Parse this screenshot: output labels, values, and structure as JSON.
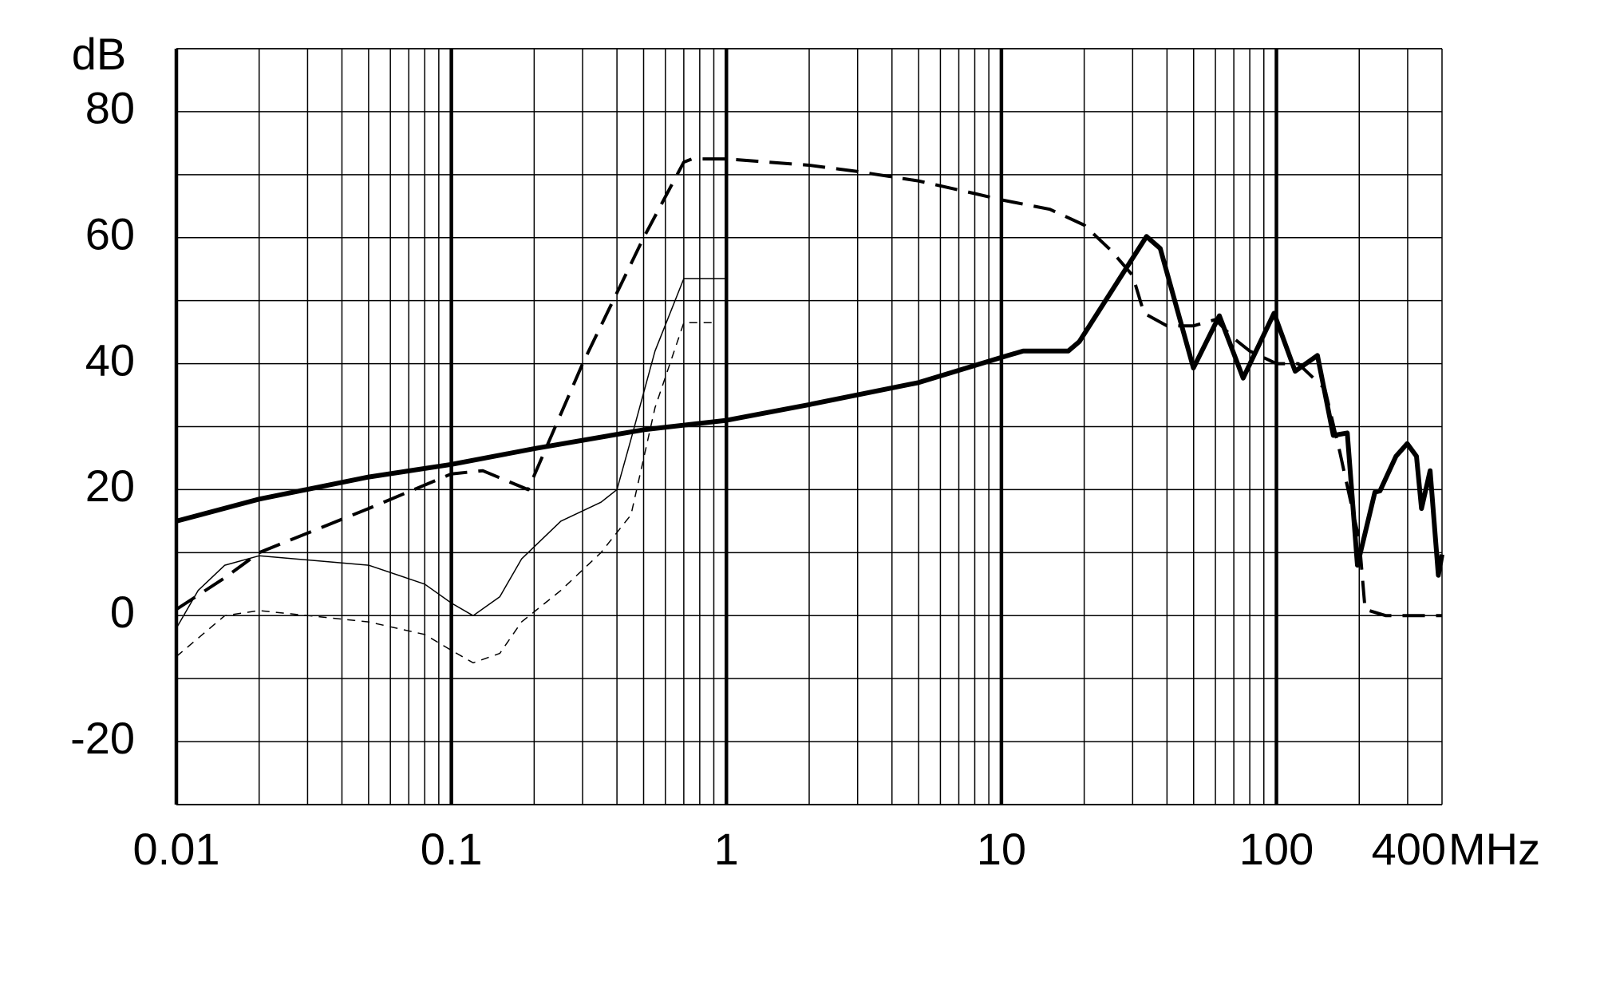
{
  "chart_data": {
    "type": "line",
    "y_label": "dB",
    "x_label": "MHz",
    "xscale": "log",
    "grid": true,
    "log_minor_grid": true,
    "xlim": [
      0.01,
      400
    ],
    "xticks": [
      0.01,
      0.1,
      1,
      10,
      100,
      400
    ],
    "ylim": [
      -30,
      90
    ],
    "yticks": [
      -20,
      0,
      20,
      40,
      60,
      80
    ],
    "y_minor_ticks": [
      -30,
      -10,
      10,
      30,
      50,
      70,
      90
    ],
    "series": [
      {
        "color": "#000000",
        "width": 6,
        "dash": "none",
        "x": [
          0.01,
          0.02,
          0.05,
          0.1,
          0.2,
          0.5,
          1,
          2,
          5,
          10,
          12,
          17.5,
          19.2,
          33.7,
          37.8,
          49.9,
          62,
          75.7,
          98,
          117,
          141,
          161,
          181,
          197,
          228,
          238,
          272,
          299,
          323,
          337,
          362,
          388,
          400
        ],
        "values": [
          15,
          18.5,
          22,
          24,
          26.5,
          29.5,
          31,
          33.5,
          37,
          41,
          42,
          42,
          43.5,
          60.2,
          58.3,
          39.3,
          47.6,
          37.7,
          48,
          38.8,
          41.3,
          28.6,
          29,
          8,
          19.6,
          19.8,
          25.3,
          27.3,
          25.3,
          17,
          23,
          6.4,
          9.7
        ]
      },
      {
        "color": "#000000",
        "width": 4,
        "dash": "28 14",
        "x": [
          0.01,
          0.015,
          0.02,
          0.05,
          0.1,
          0.13,
          0.19,
          0.3,
          0.5,
          0.7,
          0.75,
          1,
          2,
          3,
          5,
          8,
          10,
          15,
          20,
          25,
          30,
          33,
          40,
          50,
          60,
          70,
          80,
          100,
          120,
          150,
          170,
          180,
          200,
          210,
          250,
          400
        ],
        "values": [
          1,
          6,
          10,
          17,
          22.5,
          23,
          20,
          40,
          60,
          72,
          72.5,
          72.5,
          71.5,
          70.5,
          69,
          67,
          66,
          64.5,
          62,
          58,
          54,
          48,
          46,
          46,
          47,
          44,
          42,
          40,
          40,
          36,
          26,
          21,
          12,
          1,
          0,
          0
        ]
      },
      {
        "color": "#000000",
        "width": 1.5,
        "dash": "none",
        "x": [
          0.01,
          0.012,
          0.015,
          0.02,
          0.05,
          0.08,
          0.1,
          0.12,
          0.15,
          0.18,
          0.25,
          0.35,
          0.4,
          0.45,
          0.55,
          0.7,
          1
        ],
        "values": [
          -2,
          4,
          8,
          9.5,
          8,
          5,
          2,
          0,
          3,
          9,
          15,
          18,
          20,
          28,
          42,
          53.5,
          53.5
        ]
      },
      {
        "color": "#000000",
        "width": 1.5,
        "dash": "10 8",
        "x": [
          0.01,
          0.015,
          0.02,
          0.05,
          0.08,
          0.1,
          0.12,
          0.15,
          0.18,
          0.25,
          0.35,
          0.45,
          0.55,
          0.7,
          0.9
        ],
        "values": [
          -6.5,
          0,
          0.8,
          -1,
          -3,
          -5.5,
          -7.5,
          -6,
          -1,
          4,
          10,
          16,
          33,
          46.5,
          46.5
        ]
      }
    ]
  }
}
